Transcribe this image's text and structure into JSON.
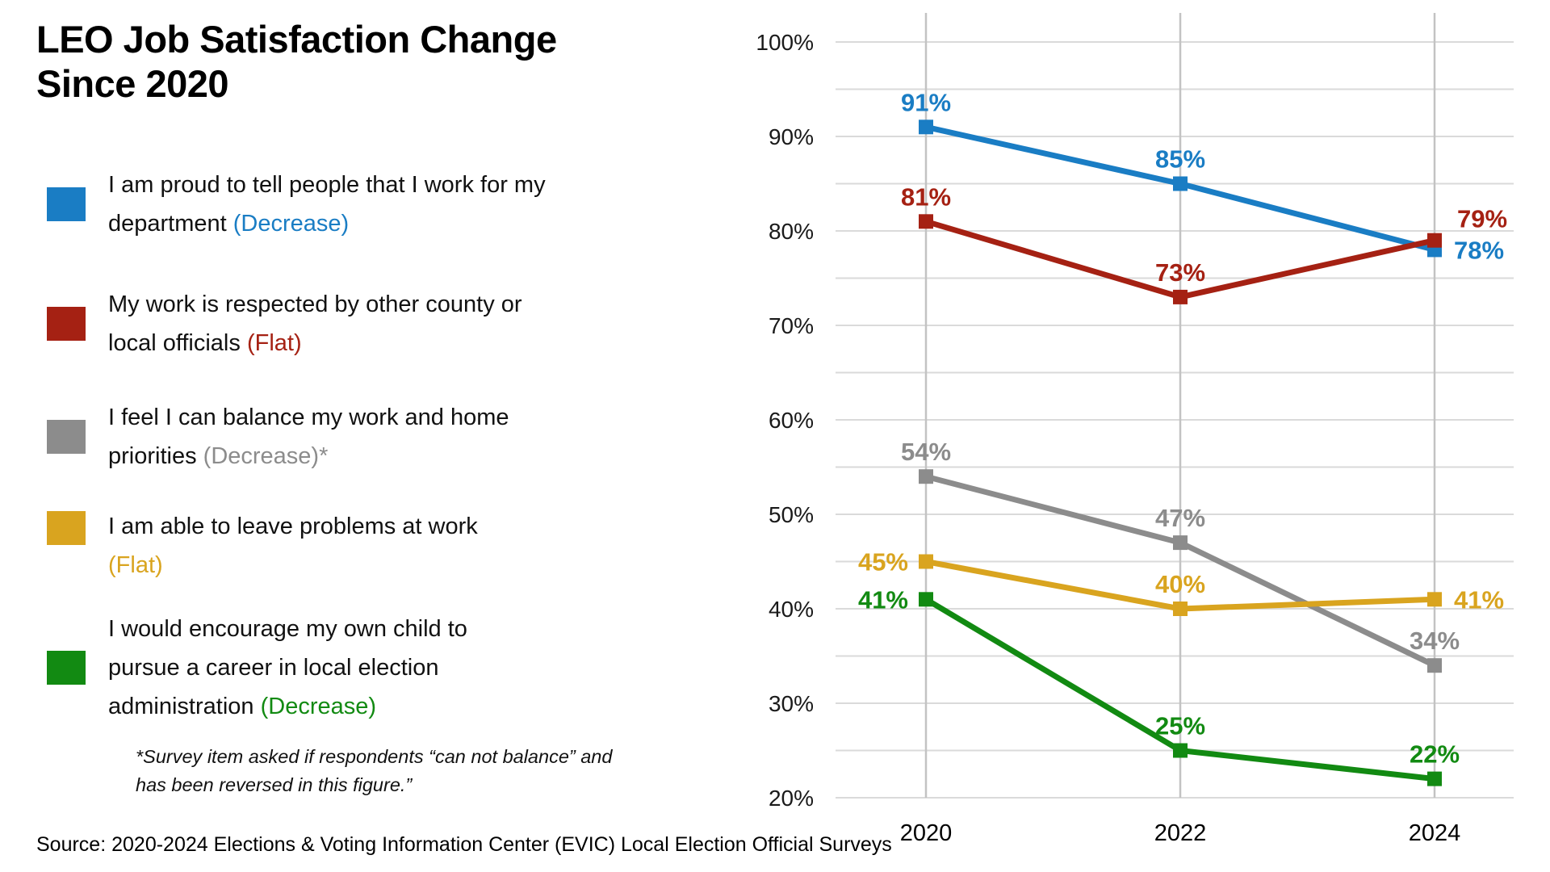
{
  "title": "LEO Job Satisfaction Change Since 2020",
  "legend": {
    "items": [
      {
        "color": "#1A7DC4",
        "text": "I am proud to tell people that I work for my department",
        "trend": "(Decrease)"
      },
      {
        "color": "#A52113",
        "text": "My work is respected by other county or local officials",
        "trend": "(Flat)"
      },
      {
        "color": "#8C8C8C",
        "text": "I feel I can balance my work and home priorities",
        "trend": "(Decrease)*"
      },
      {
        "color": "#D9A41F",
        "text": "I am able to leave problems at work",
        "trend": "(Flat)"
      },
      {
        "color": "#128A12",
        "text": "I would encourage my own child to pursue a career in local election administration",
        "trend": "(Decrease)"
      }
    ]
  },
  "footnote": "*Survey item asked if respondents “can not balance” and has been reversed in this figure.”",
  "source": "Source: 2020-2024 Elections & Voting Information Center (EVIC) Local Election Official Surveys",
  "chart_data": {
    "type": "line",
    "x": [
      "2020",
      "2022",
      "2024"
    ],
    "series": [
      {
        "name": "I am proud to tell people that I work for my department",
        "trend": "Decrease",
        "color": "#1A7DC4",
        "values": [
          91,
          85,
          78
        ],
        "point_labels": [
          "91%",
          "85%",
          "78%"
        ],
        "label_anchors": [
          "above",
          "above",
          "right"
        ]
      },
      {
        "name": "My work is respected by other county or local officials",
        "trend": "Flat",
        "color": "#A52113",
        "values": [
          81,
          73,
          79
        ],
        "point_labels": [
          "81%",
          "73%",
          "79%"
        ],
        "label_anchors": [
          "above",
          "above",
          "right-up"
        ]
      },
      {
        "name": "I feel I can balance my work and home priorities",
        "trend": "Decrease",
        "color": "#8C8C8C",
        "values": [
          54,
          47,
          34
        ],
        "point_labels": [
          "54%",
          "47%",
          "34%"
        ],
        "label_anchors": [
          "above",
          "above",
          "above"
        ]
      },
      {
        "name": "I am able to leave problems at work",
        "trend": "Flat",
        "color": "#D9A41F",
        "values": [
          45,
          40,
          41
        ],
        "point_labels": [
          "45%",
          "40%",
          "41%"
        ],
        "label_anchors": [
          "left",
          "above",
          "right"
        ]
      },
      {
        "name": "I would encourage my own child to pursue a career in local election administration",
        "trend": "Decrease",
        "color": "#128A12",
        "values": [
          41,
          25,
          22
        ],
        "point_labels": [
          "41%",
          "25%",
          "22%"
        ],
        "label_anchors": [
          "left",
          "above",
          "above"
        ]
      }
    ],
    "ylim": [
      20,
      100
    ],
    "ytick_step": 10,
    "minor_grid_step": 5,
    "ytick_labels": [
      "20%",
      "30%",
      "40%",
      "50%",
      "60%",
      "70%",
      "80%",
      "90%",
      "100%"
    ],
    "grid": true,
    "legend_position": "left",
    "title": "LEO Job Satisfaction Change Since 2020"
  }
}
